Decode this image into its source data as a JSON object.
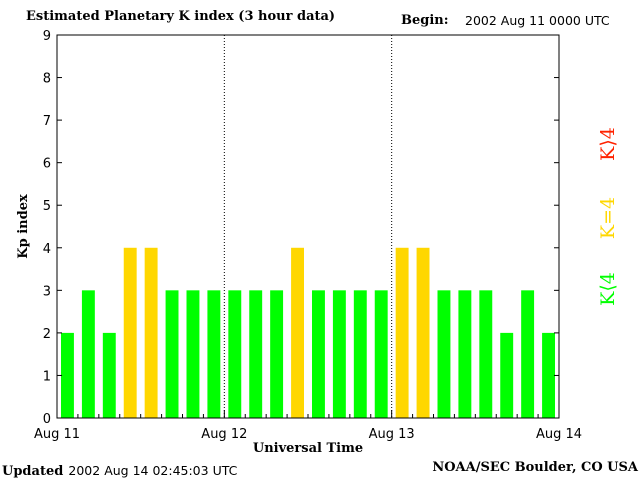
{
  "header": {
    "title": "Estimated Planetary K index (3 hour data)",
    "begin_label": "Begin:",
    "begin_value": "2002 Aug 11 0000 UTC"
  },
  "footer": {
    "updated_label": "Updated",
    "updated_value": "2002 Aug 14 02:45:03 UTC",
    "credit": "NOAA/SEC Boulder, CO USA"
  },
  "colors": {
    "low": "#00ff00",
    "equal": "#ffd700",
    "high": "#ff2200",
    "axis": "#000000"
  },
  "legend": [
    {
      "label": "K⟨4",
      "color": "#00ff00"
    },
    {
      "label": "K=4",
      "color": "#ffd700"
    },
    {
      "label": "K⟩4",
      "color": "#ff2200"
    }
  ],
  "chart_data": {
    "type": "bar",
    "title": "Estimated Planetary K index (3 hour data)",
    "xlabel": "Universal Time",
    "ylabel": "Kp index",
    "ylim": [
      0,
      9
    ],
    "yticks": [
      0,
      1,
      2,
      3,
      4,
      5,
      6,
      7,
      8,
      9
    ],
    "x_tick_labels": [
      "Aug 11",
      "Aug 12",
      "Aug 13",
      "Aug 14"
    ],
    "day_separators": [
      "Aug 12",
      "Aug 13"
    ],
    "interval_hours": 3,
    "start": "2002 Aug 11 0000 UTC",
    "values": [
      2,
      3,
      2,
      4,
      4,
      3,
      3,
      3,
      3,
      3,
      3,
      4,
      3,
      3,
      3,
      3,
      4,
      4,
      3,
      3,
      3,
      2,
      3,
      2
    ],
    "grid": false,
    "legend_position": "right"
  }
}
